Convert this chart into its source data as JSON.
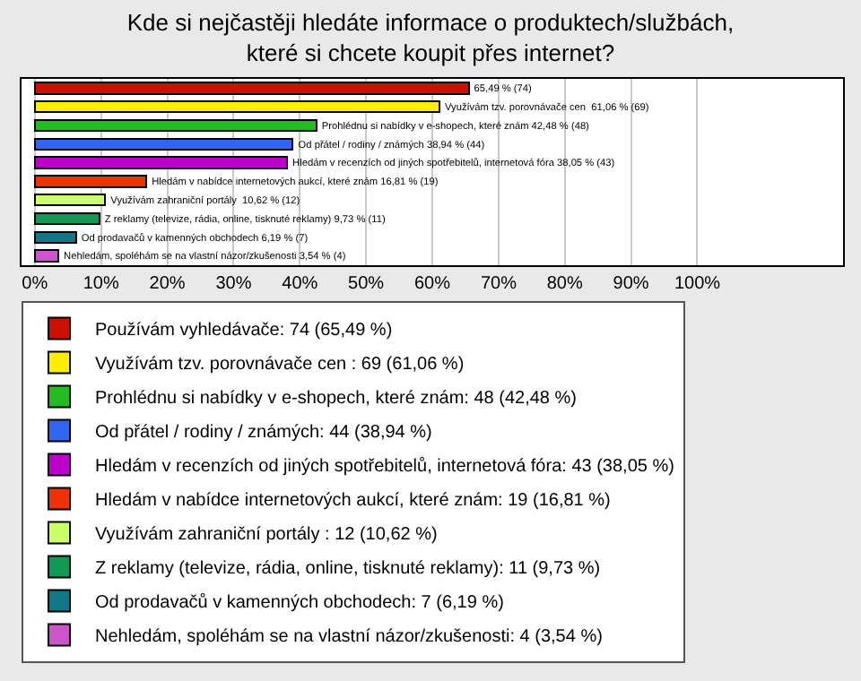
{
  "chart_data": {
    "type": "bar",
    "orientation": "horizontal",
    "stacked": true,
    "title": "Kde si nejčastěji hledáte informace o produktech/službách, které si chcete koupit přes internet?",
    "categories": [
      null,
      null,
      null,
      null,
      null,
      null,
      null,
      null,
      null,
      null
    ],
    "series": [
      {
        "name": "Používám vyhledávače: 74 (65,49 %)",
        "color": "#cc1100",
        "values": [
          65.49,
          null,
          null,
          null,
          null,
          null,
          null,
          null,
          null,
          null
        ],
        "value_labels": [
          "65,49 % (74)",
          null,
          null,
          null,
          null,
          null,
          null,
          null,
          null,
          null
        ]
      },
      {
        "name": "Využívám tzv. porovnávače cen : 69 (61,06 %)",
        "color": "#ffee00",
        "values": [
          null,
          61.06,
          null,
          null,
          null,
          null,
          null,
          null,
          null,
          null
        ],
        "value_labels": [
          null,
          "Využívám tzv. porovnávače cen  61,06 % (69)",
          null,
          null,
          null,
          null,
          null,
          null,
          null,
          null
        ]
      },
      {
        "name": "Prohlédnu si nabídky v e-shopech, které znám: 48 (42,48 %)",
        "color": "#22bb22",
        "values": [
          null,
          null,
          42.48,
          null,
          null,
          null,
          null,
          null,
          null,
          null
        ],
        "value_labels": [
          null,
          null,
          "Prohlédnu si nabídky v e-shopech, které znám 42,48 % (48)",
          null,
          null,
          null,
          null,
          null,
          null,
          null
        ]
      },
      {
        "name": "Od přátel / rodiny / známých: 44 (38,94 %)",
        "color": "#3366ee",
        "values": [
          null,
          null,
          null,
          38.94,
          null,
          null,
          null,
          null,
          null,
          null
        ],
        "value_labels": [
          null,
          null,
          null,
          "Od přátel / rodiny / známých 38,94 % (44)",
          null,
          null,
          null,
          null,
          null,
          null
        ]
      },
      {
        "name": "Hledám v recenzích od jiných spotřebitelů, internetová fóra: 43 (38,05 %)",
        "color": "#bb00cc",
        "values": [
          null,
          null,
          null,
          null,
          38.05,
          null,
          null,
          null,
          null,
          null
        ],
        "value_labels": [
          null,
          null,
          null,
          null,
          "Hledám v recenzích od jiných spotřebitelů, internetová fóra 38,05 % (43)",
          null,
          null,
          null,
          null,
          null
        ]
      },
      {
        "name": "Hledám v nabídce internetových aukcí, které znám: 19 (16,81 %)",
        "color": "#ee3300",
        "values": [
          null,
          null,
          null,
          null,
          null,
          16.81,
          null,
          null,
          null,
          null
        ],
        "value_labels": [
          null,
          null,
          null,
          null,
          null,
          "Hledám v nabídce internetových aukcí, které znám 16,81 % (19)",
          null,
          null,
          null,
          null
        ]
      },
      {
        "name": "Využívám zahraniční portály : 12 (10,62 %)",
        "color": "#ccff66",
        "values": [
          null,
          null,
          null,
          null,
          null,
          null,
          10.62,
          null,
          null,
          null
        ],
        "value_labels": [
          null,
          null,
          null,
          null,
          null,
          null,
          "Využívám zahraniční portály  10,62 % (12)",
          null,
          null,
          null
        ]
      },
      {
        "name": "Z reklamy (televize, rádia, online, tisknuté reklamy): 11 (9,73 %)",
        "color": "#119955",
        "values": [
          null,
          null,
          null,
          null,
          null,
          null,
          null,
          9.73,
          null,
          null
        ],
        "value_labels": [
          null,
          null,
          null,
          null,
          null,
          null,
          null,
          "Z reklamy (televize, rádia, online, tisknuté reklamy) 9,73 % (11)",
          null,
          null
        ]
      },
      {
        "name": "Od prodavačů v kamenných obchodech: 7 (6,19 %)",
        "color": "#117788",
        "values": [
          null,
          null,
          null,
          null,
          null,
          null,
          null,
          null,
          6.19,
          null
        ],
        "value_labels": [
          null,
          null,
          null,
          null,
          null,
          null,
          null,
          null,
          "Od prodavačů v kamenných obchodech 6,19 % (7)",
          null
        ]
      },
      {
        "name": "Nehledám, spoléhám se na vlastní názor/zkušenosti: 4 (3,54 %)",
        "color": "#cc55cc",
        "values": [
          null,
          null,
          null,
          null,
          null,
          null,
          null,
          null,
          null,
          3.54
        ],
        "value_labels": [
          null,
          null,
          null,
          null,
          null,
          null,
          null,
          null,
          null,
          "Nehledám, spoléhám se na vlastní názor/zkušenosti 3,54 % (4)"
        ]
      }
    ],
    "xlim": [
      -2,
      122
    ],
    "xticks": [
      {
        "value": 0,
        "label": "0%"
      },
      {
        "value": 10,
        "label": "10%"
      },
      {
        "value": 20,
        "label": "20%"
      },
      {
        "value": 30,
        "label": "30%"
      },
      {
        "value": 40,
        "label": "40%"
      },
      {
        "value": 50,
        "label": "50%"
      },
      {
        "value": 60,
        "label": "60%"
      },
      {
        "value": 70,
        "label": "70%"
      },
      {
        "value": 80,
        "label": "80%"
      },
      {
        "value": 90,
        "label": "90%"
      },
      {
        "value": 100,
        "label": "100%"
      }
    ],
    "grid": "x",
    "legend": "bottom",
    "tick_labels": "x"
  }
}
